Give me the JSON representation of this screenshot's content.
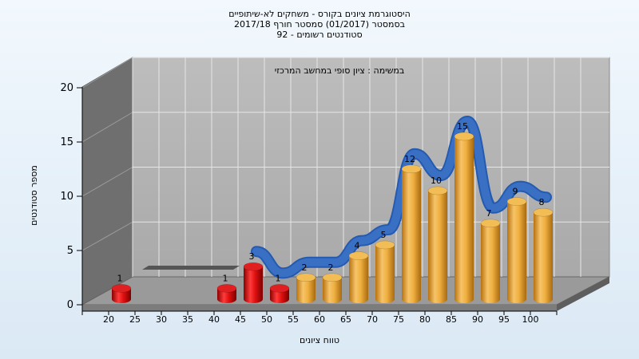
{
  "title_lines": [
    "היסטוגרמת ציונים בקורס - משחקים לא-שיתופיים",
    "בסמסטר  (01/2017)  סמסטר חורף  2017/18",
    "סטודנטים רשומים - 92"
  ],
  "chart_data": {
    "type": "bar",
    "subtitle": "במשימה : ציון סופי במחשב המרכזי",
    "xlabel": "טווח ציונים",
    "ylabel": "מספר סטודנטים",
    "ylim": [
      0,
      20
    ],
    "yticks": [
      0,
      5,
      10,
      15,
      20
    ],
    "categories": [
      "20",
      "25",
      "30",
      "35",
      "40",
      "45",
      "50",
      "55",
      "60",
      "65",
      "70",
      "75",
      "80",
      "85",
      "90",
      "95",
      "100"
    ],
    "values": [
      1,
      0,
      0,
      0,
      1,
      3,
      1,
      2,
      2,
      4,
      5,
      12,
      10,
      15,
      7,
      9,
      8
    ],
    "data_labels": [
      "1",
      "",
      "",
      "",
      "1",
      "3",
      "1",
      "2",
      "2",
      "4",
      "5",
      "12",
      "10",
      "15",
      "7",
      "9",
      "8"
    ],
    "colors": [
      "red",
      "red",
      "red",
      "red",
      "red",
      "red",
      "red",
      "orange",
      "orange",
      "orange",
      "orange",
      "orange",
      "orange",
      "orange",
      "orange",
      "orange",
      "orange"
    ],
    "trend_line_color": "#3a70c4",
    "grid": true,
    "legend": "none"
  }
}
